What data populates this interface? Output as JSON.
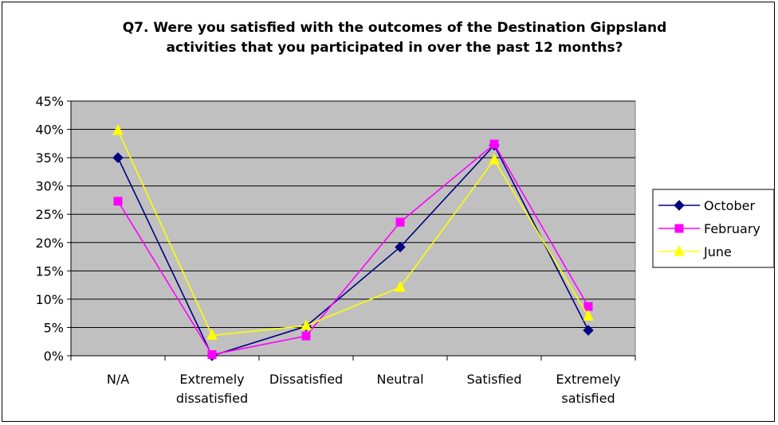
{
  "chart_data": {
    "type": "line",
    "title_lines": [
      "Q7. Were you satisfied with the outcomes of the Destination Gippsland",
      "activities that you participated in over the past 12 months?"
    ],
    "categories": [
      [
        "N/A"
      ],
      [
        "Extremely",
        "dissatisfied"
      ],
      [
        "Dissatisfied"
      ],
      [
        "Neutral"
      ],
      [
        "Satisfied"
      ],
      [
        "Extremely",
        "satisfied"
      ]
    ],
    "y_ticks": [
      "0%",
      "5%",
      "10%",
      "15%",
      "20%",
      "25%",
      "30%",
      "35%",
      "40%",
      "45%"
    ],
    "ylim": [
      0,
      45
    ],
    "grid": true,
    "legend_position": "right",
    "series": [
      {
        "name": "October",
        "color": "#000080",
        "marker": "diamond",
        "values": [
          35,
          0,
          5.2,
          19.2,
          37.2,
          4.5
        ]
      },
      {
        "name": "February",
        "color": "#ff00ff",
        "marker": "square",
        "values": [
          27.3,
          0.2,
          3.5,
          23.6,
          37.4,
          8.7
        ]
      },
      {
        "name": "June",
        "color": "#ffff00",
        "marker": "triangle",
        "values": [
          39.8,
          3.6,
          5.3,
          12.1,
          34.6,
          7
        ]
      }
    ]
  }
}
